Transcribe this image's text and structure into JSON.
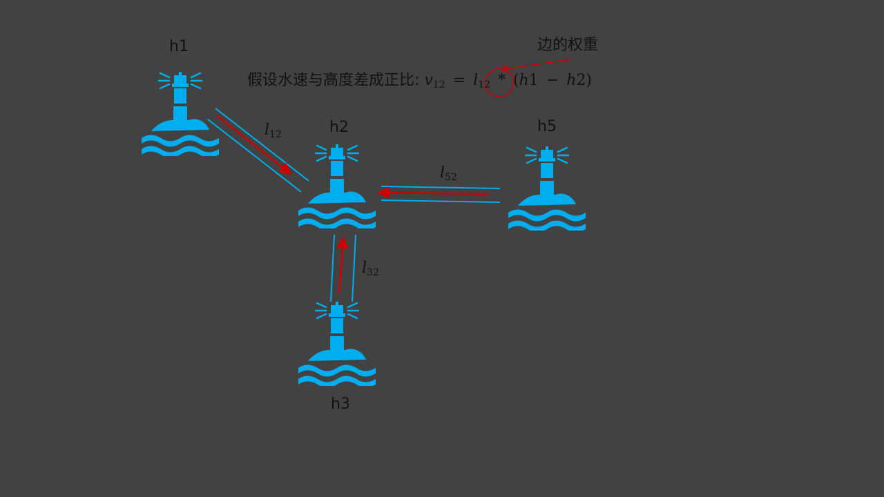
{
  "colors": {
    "background": "#424242",
    "node": "#00AEEF",
    "edge": "#00AEEF",
    "flow_arrow": "#D00000",
    "annotation": "#D00000",
    "text": "#111111"
  },
  "nodes": {
    "h1": {
      "label": "h1",
      "icon": "lighthouse-icon"
    },
    "h2": {
      "label": "h2",
      "icon": "lighthouse-icon"
    },
    "h3": {
      "label": "h3",
      "icon": "lighthouse-icon"
    },
    "h5": {
      "label": "h5",
      "icon": "lighthouse-icon"
    }
  },
  "edges": {
    "e12": {
      "var": "l",
      "sub": "12",
      "from": "h1",
      "to": "h2"
    },
    "e52": {
      "var": "l",
      "sub": "52",
      "from": "h5",
      "to": "h2"
    },
    "e32": {
      "var": "l",
      "sub": "32",
      "from": "h3",
      "to": "h2"
    }
  },
  "formula": {
    "prefix": "假设水速与高度差成正比:",
    "v": "v",
    "v_sub": "12",
    "equals": "=",
    "l": "l",
    "l_sub": "12",
    "times": "*",
    "open": "(",
    "h_a": "h",
    "h_a_num": "1",
    "minus": "−",
    "h_b": "h",
    "h_b_num": "2",
    "close": ")"
  },
  "annotation": {
    "text": "边的权重",
    "target": "formula.l"
  }
}
